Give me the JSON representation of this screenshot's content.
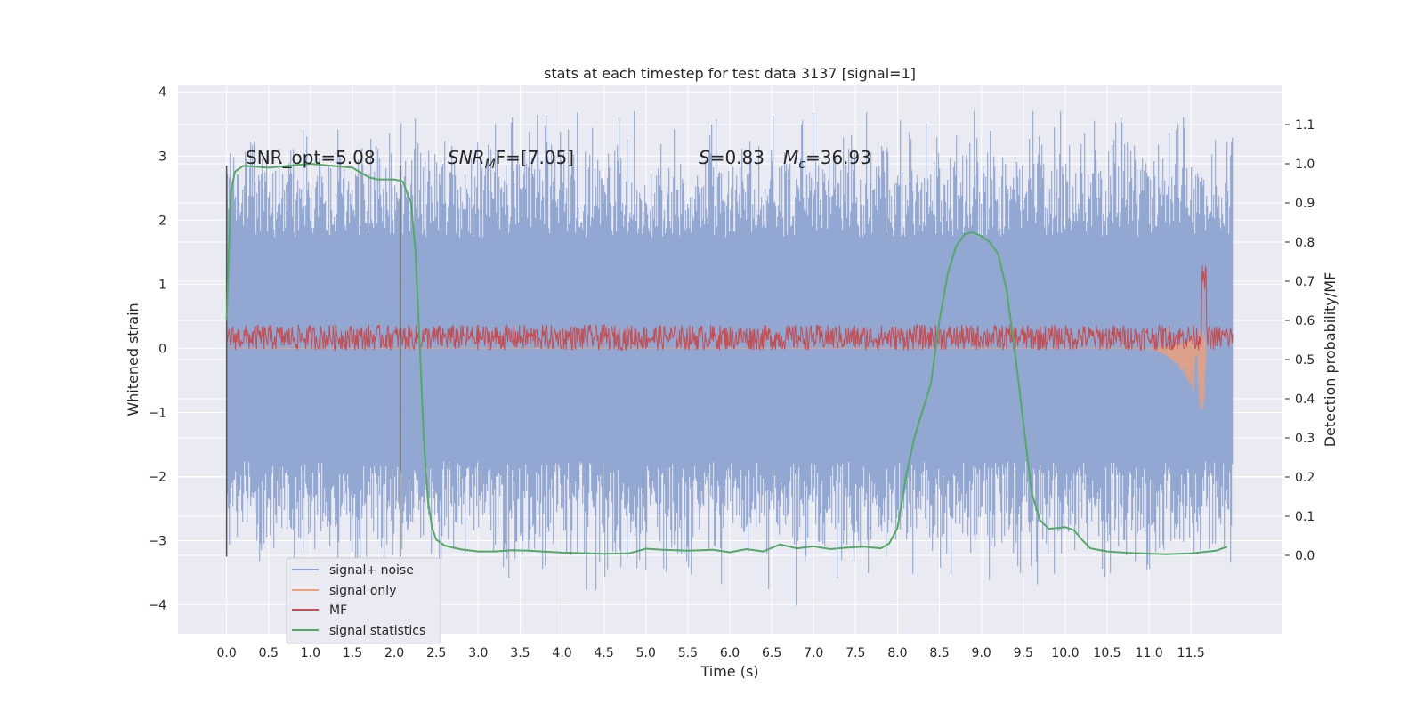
{
  "chart_data": {
    "type": "line",
    "title": "stats at each timestep for test data 3137 [signal=1]",
    "xlabel": "Time (s)",
    "ylabel": "Whitened strain",
    "ylabel_right": "Detection probability/MF",
    "xlim": [
      -0.58,
      12.58
    ],
    "ylim": [
      -4.45,
      4.1
    ],
    "ylim_right": [
      -0.2,
      1.2
    ],
    "x_ticks": [
      "0.0",
      "0.5",
      "1.0",
      "1.5",
      "2.0",
      "2.5",
      "3.0",
      "3.5",
      "4.0",
      "4.5",
      "5.0",
      "5.5",
      "6.0",
      "6.5",
      "7.0",
      "7.5",
      "8.0",
      "8.5",
      "9.0",
      "9.5",
      "10.0",
      "10.5",
      "11.0",
      "11.5"
    ],
    "y_ticks": [
      "4",
      "3",
      "2",
      "1",
      "0",
      "−1",
      "−2",
      "−3",
      "−4"
    ],
    "y_right_ticks": [
      "1.1",
      "1.0",
      "0.9",
      "0.8",
      "0.7",
      "0.6",
      "0.5",
      "0.4",
      "0.3",
      "0.2",
      "0.1",
      "0.0"
    ],
    "grid": true,
    "legend_position": "lower-left",
    "annotations": {
      "snr_opt": "SNR_opt=5.08",
      "snr_mf_sym": "SNR",
      "snr_mf_sub": "M",
      "snr_mf_rest": "F=[7.05]",
      "s_sym": "S",
      "s_rest": "=0.83",
      "mc_sym": "M",
      "mc_sub": "c",
      "mc_rest": "=36.93"
    },
    "vertical_lines": [
      0.0,
      2.07
    ],
    "series": [
      {
        "name": "signal+ noise",
        "color": "#8da3cf",
        "axis": "left",
        "x_range": [
          0.0,
          12.0
        ],
        "envelope": {
          "upper": 2.3,
          "lower": -2.35,
          "spike_max": 3.7,
          "spike_min": -4.1
        }
      },
      {
        "name": "signal only",
        "color": "#e8a07e",
        "axis": "left",
        "x_range": [
          0.0,
          11.68
        ],
        "chirp": {
          "start": 10.8,
          "peak_time": 11.65,
          "min": -1.1,
          "max": 0.3
        }
      },
      {
        "name": "MF",
        "color": "#c44e52",
        "axis": "left",
        "x_range": [
          0.0,
          12.0
        ],
        "band": {
          "center": 0.17,
          "amplitude": 0.2,
          "peak_time": 11.65,
          "peak_value": 1.3
        }
      },
      {
        "name": "signal statistics",
        "color": "#55a868",
        "axis": "right",
        "x": [
          0.0,
          0.05,
          0.1,
          0.2,
          0.5,
          1.0,
          1.5,
          1.7,
          1.8,
          2.0,
          2.1,
          2.2,
          2.25,
          2.3,
          2.35,
          2.4,
          2.45,
          2.5,
          2.6,
          2.8,
          3.0,
          3.2,
          3.4,
          3.6,
          4.0,
          4.5,
          4.8,
          5.0,
          5.2,
          5.5,
          5.8,
          6.0,
          6.2,
          6.4,
          6.6,
          6.8,
          7.0,
          7.2,
          7.4,
          7.6,
          7.8,
          7.9,
          8.0,
          8.1,
          8.2,
          8.3,
          8.4,
          8.5,
          8.6,
          8.7,
          8.8,
          8.9,
          9.0,
          9.1,
          9.2,
          9.3,
          9.4,
          9.5,
          9.6,
          9.7,
          9.8,
          9.9,
          10.0,
          10.1,
          10.2,
          10.3,
          10.5,
          10.8,
          11.2,
          11.5,
          11.8,
          11.93
        ],
        "values": [
          0.6,
          0.93,
          0.98,
          0.995,
          0.99,
          1.0,
          0.99,
          0.965,
          0.96,
          0.96,
          0.955,
          0.9,
          0.78,
          0.55,
          0.3,
          0.14,
          0.07,
          0.04,
          0.025,
          0.015,
          0.01,
          0.01,
          0.013,
          0.012,
          0.007,
          0.004,
          0.005,
          0.017,
          0.014,
          0.012,
          0.014,
          0.008,
          0.016,
          0.01,
          0.028,
          0.018,
          0.023,
          0.016,
          0.02,
          0.022,
          0.018,
          0.03,
          0.07,
          0.2,
          0.3,
          0.37,
          0.44,
          0.6,
          0.72,
          0.79,
          0.82,
          0.825,
          0.815,
          0.8,
          0.77,
          0.68,
          0.52,
          0.34,
          0.16,
          0.09,
          0.068,
          0.07,
          0.072,
          0.065,
          0.04,
          0.018,
          0.01,
          0.006,
          0.003,
          0.005,
          0.012,
          0.022
        ]
      }
    ]
  }
}
